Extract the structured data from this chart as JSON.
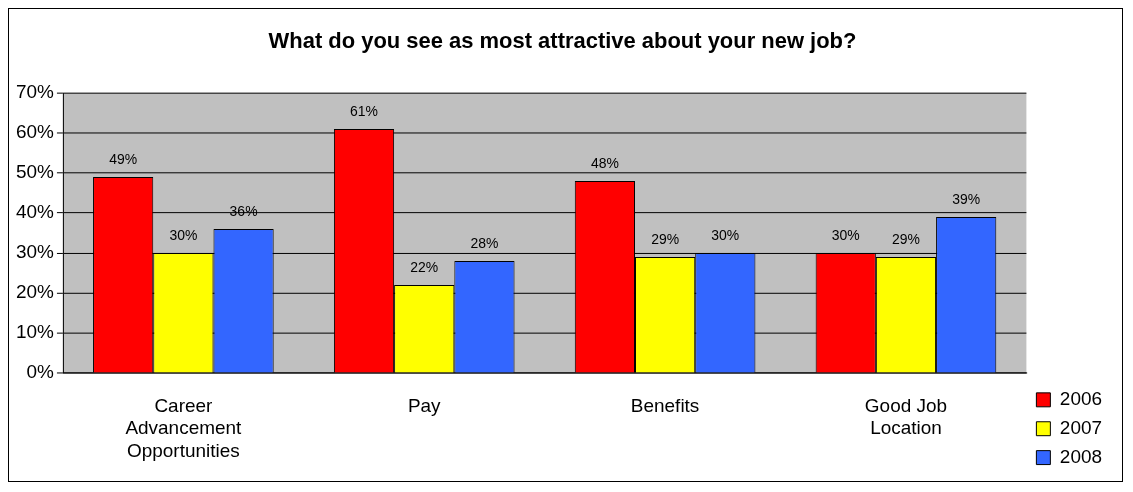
{
  "chart_data": {
    "type": "bar",
    "title": "What do you see as most attractive about your new job?",
    "categories": [
      "Career Advancement Opportunities",
      "Pay",
      "Benefits",
      "Good Job Location"
    ],
    "series": [
      {
        "name": "2006",
        "color": "#ff0000",
        "values": [
          49,
          61,
          48,
          30
        ],
        "value_labels": [
          "49%",
          "61%",
          "48%",
          "30%"
        ]
      },
      {
        "name": "2007",
        "color": "#ffff00",
        "values": [
          30,
          22,
          29,
          29
        ],
        "value_labels": [
          "30%",
          "22%",
          "29%",
          "29%"
        ]
      },
      {
        "name": "2008",
        "color": "#3366ff",
        "values": [
          36,
          28,
          30,
          39
        ],
        "value_labels": [
          "36%",
          "28%",
          "30%",
          "39%"
        ]
      }
    ],
    "ylim": [
      0,
      70
    ],
    "yticks": [
      {
        "value": 0,
        "label": "0%"
      },
      {
        "value": 10,
        "label": "10%"
      },
      {
        "value": 20,
        "label": "20%"
      },
      {
        "value": 30,
        "label": "30%"
      },
      {
        "value": 40,
        "label": "40%"
      },
      {
        "value": 50,
        "label": "50%"
      },
      {
        "value": 60,
        "label": "60%"
      },
      {
        "value": 70,
        "label": "70%"
      }
    ],
    "grid": "y",
    "legend": "bottom right"
  }
}
